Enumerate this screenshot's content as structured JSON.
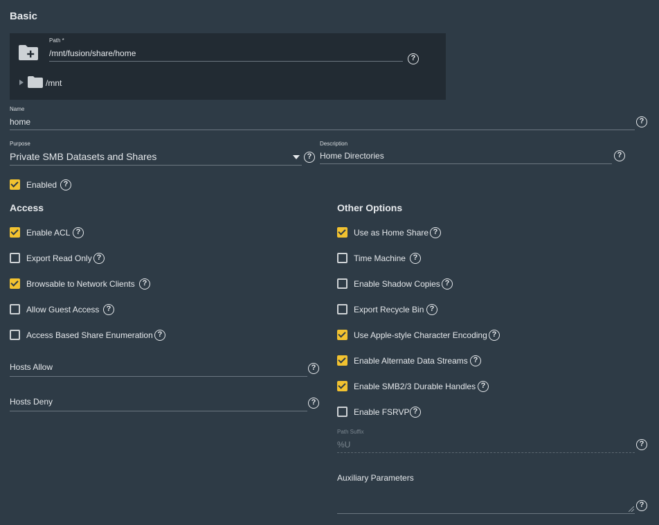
{
  "basic": {
    "title": "Basic"
  },
  "path": {
    "label": "Path *",
    "value": "/mnt/fusion/share/home",
    "tree_root": "/mnt"
  },
  "name": {
    "label": "Name",
    "value": "home"
  },
  "purpose": {
    "label": "Purpose",
    "value": "Private SMB Datasets and Shares"
  },
  "description": {
    "label": "Description",
    "value": "Home Directories"
  },
  "enabled": {
    "label": "Enabled",
    "checked": true
  },
  "access": {
    "title": "Access",
    "options": [
      {
        "label": "Enable ACL",
        "checked": true
      },
      {
        "label": "Export Read Only",
        "checked": false
      },
      {
        "label": "Browsable to Network Clients",
        "checked": true
      },
      {
        "label": "Allow Guest Access",
        "checked": false
      },
      {
        "label": "Access Based Share Enumeration",
        "checked": false
      }
    ],
    "hosts_allow": {
      "label": "Hosts Allow"
    },
    "hosts_deny": {
      "label": "Hosts Deny"
    }
  },
  "other": {
    "title": "Other Options",
    "options": [
      {
        "label": "Use as Home Share",
        "checked": true
      },
      {
        "label": "Time Machine",
        "checked": false
      },
      {
        "label": "Enable Shadow Copies",
        "checked": false
      },
      {
        "label": "Export Recycle Bin",
        "checked": false
      },
      {
        "label": "Use Apple-style Character Encoding",
        "checked": true
      },
      {
        "label": "Enable Alternate Data Streams",
        "checked": true
      },
      {
        "label": "Enable SMB2/3 Durable Handles",
        "checked": true
      },
      {
        "label": "Enable FSRVP",
        "checked": false
      }
    ],
    "path_suffix": {
      "label": "Path Suffix",
      "value": "%U"
    },
    "auxiliary": {
      "label": "Auxiliary Parameters"
    }
  },
  "colors": {
    "background": "#2e3b46",
    "panel": "#222b33",
    "accent": "#f2c230"
  },
  "icons": {
    "help": "?",
    "folder_add": "folder-add-icon",
    "folder": "folder-icon"
  }
}
